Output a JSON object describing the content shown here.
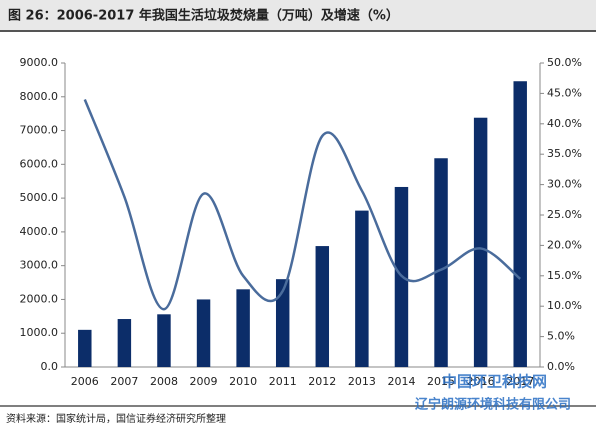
{
  "chart_data": {
    "type": "bar_line",
    "title": "图 26：2006-2017 年我国生活垃圾焚烧量（万吨）及增速（%）",
    "source": "资料来源：国家统计局，国信证券经济研究所整理",
    "watermark": [
      "中国环卫科技网",
      "辽宁朗源环境科技有限公司"
    ],
    "categories": [
      "2006",
      "2007",
      "2008",
      "2009",
      "2010",
      "2011",
      "2012",
      "2013",
      "2014",
      "2015",
      "2016",
      "2017"
    ],
    "series": [
      {
        "name": "焚烧量",
        "type": "bar",
        "color": "#0c2d69",
        "values": [
          1100,
          1420,
          1560,
          2000,
          2300,
          2600,
          3580,
          4630,
          5330,
          6180,
          7380,
          8460
        ]
      },
      {
        "name": "增速",
        "type": "line",
        "axis": "y2",
        "color": "#4a6c9c",
        "values": [
          44.0,
          28.0,
          9.5,
          28.5,
          15.0,
          12.5,
          38.0,
          29.0,
          15.0,
          16.0,
          19.5,
          14.5
        ]
      }
    ],
    "ylim": [
      0,
      9000
    ],
    "yticks": [
      {
        "value": 0,
        "label": "0.0"
      },
      {
        "value": 1000,
        "label": "1000.0"
      },
      {
        "value": 2000,
        "label": "2000.0"
      },
      {
        "value": 3000,
        "label": "3000.0"
      },
      {
        "value": 4000,
        "label": "4000.0"
      },
      {
        "value": 5000,
        "label": "5000.0"
      },
      {
        "value": 6000,
        "label": "6000.0"
      },
      {
        "value": 7000,
        "label": "7000.0"
      },
      {
        "value": 8000,
        "label": "8000.0"
      },
      {
        "value": 9000,
        "label": "9000.0"
      }
    ],
    "y2lim": [
      0,
      50
    ],
    "y2ticks": [
      {
        "value": 0,
        "label": "0.0%"
      },
      {
        "value": 5,
        "label": "5.0%"
      },
      {
        "value": 10,
        "label": "10.0%"
      },
      {
        "value": 15,
        "label": "15.0%"
      },
      {
        "value": 20,
        "label": "20.0%"
      },
      {
        "value": 25,
        "label": "25.0%"
      },
      {
        "value": 30,
        "label": "30.0%"
      },
      {
        "value": 35,
        "label": "35.0%"
      },
      {
        "value": 40,
        "label": "40.0%"
      },
      {
        "value": 45,
        "label": "45.0%"
      },
      {
        "value": 50,
        "label": "50.0%"
      }
    ],
    "grid": false
  }
}
